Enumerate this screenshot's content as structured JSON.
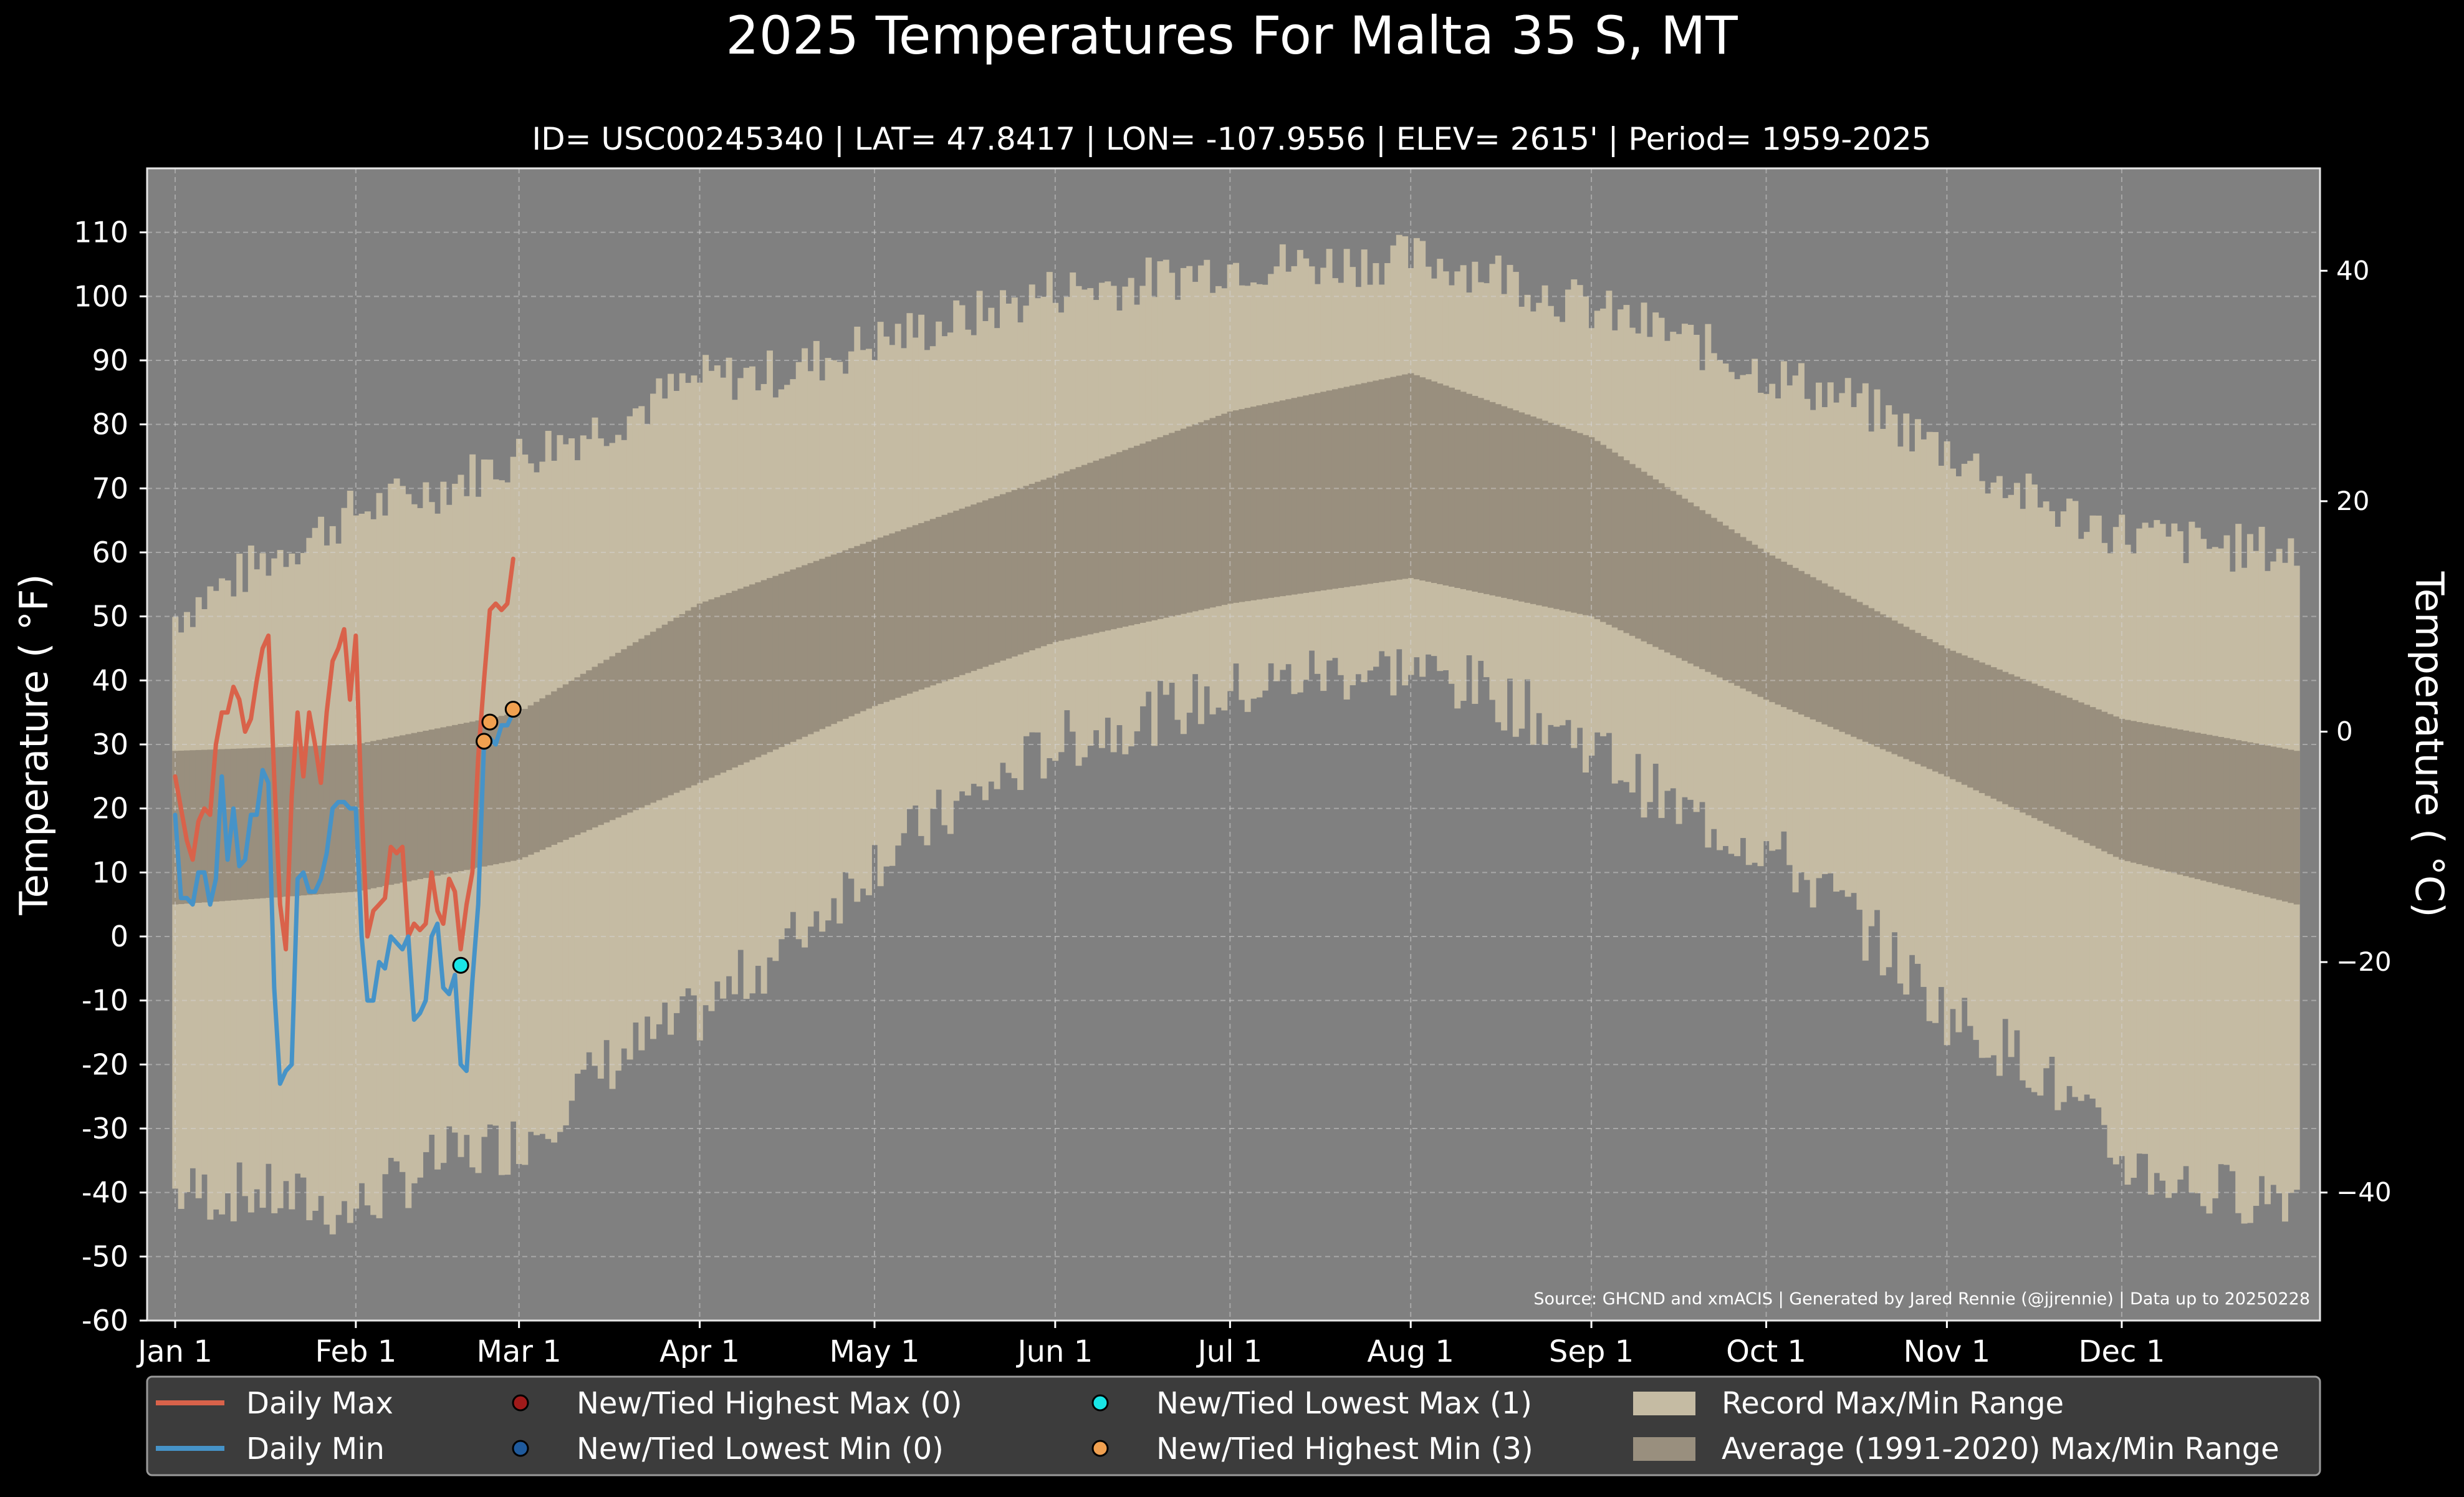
{
  "chart_data": {
    "type": "line",
    "title": "2025 Temperatures For Malta 35 S, MT",
    "subtitle": "ID= USC00245340 | LAT= 47.8417 | LON= -107.9556 | ELEV= 2615' | Period= 1959-2025",
    "ylabel_left": "Temperature ( °F)",
    "ylabel_right": "Temperature ( °C)",
    "source": "Source: GHCND and xmACIS | Generated by Jared Rennie (@jjrennie) | Data up to 20250228",
    "ylim": [
      -60,
      120
    ],
    "grid": true,
    "y_ticks": [
      -60,
      -50,
      -40,
      -30,
      -20,
      -10,
      0,
      10,
      20,
      30,
      40,
      50,
      60,
      70,
      80,
      90,
      100,
      110
    ],
    "y_ticks_c": [
      -40,
      -20,
      0,
      20,
      40
    ],
    "x_ticks": [
      {
        "label": "Jan 1",
        "day": 1
      },
      {
        "label": "Feb 1",
        "day": 32
      },
      {
        "label": "Mar 1",
        "day": 60
      },
      {
        "label": "Apr 1",
        "day": 91
      },
      {
        "label": "May 1",
        "day": 121
      },
      {
        "label": "Jun 1",
        "day": 152
      },
      {
        "label": "Jul 1",
        "day": 182
      },
      {
        "label": "Aug 1",
        "day": 213
      },
      {
        "label": "Sep 1",
        "day": 244
      },
      {
        "label": "Oct 1",
        "day": 274
      },
      {
        "label": "Nov 1",
        "day": 305
      },
      {
        "label": "Dec 1",
        "day": 335
      }
    ],
    "colors": {
      "background": "#808080",
      "record_range": "#c5bba3",
      "average_range": "#998f7e",
      "daily_max": "#d9624a",
      "daily_min": "#4693c8",
      "highest_max": "#a01a1a",
      "lowest_min": "#1f5a9c",
      "lowest_max": "#19e6e6",
      "highest_min": "#f0a050"
    },
    "record_max_anchors": [
      [
        1,
        50
      ],
      [
        15,
        58
      ],
      [
        31,
        66
      ],
      [
        46,
        70
      ],
      [
        60,
        75
      ],
      [
        75,
        80
      ],
      [
        91,
        87
      ],
      [
        105,
        88
      ],
      [
        121,
        93
      ],
      [
        135,
        96
      ],
      [
        152,
        101
      ],
      [
        166,
        102
      ],
      [
        182,
        105
      ],
      [
        196,
        105
      ],
      [
        213,
        106
      ],
      [
        227,
        104
      ],
      [
        244,
        98
      ],
      [
        258,
        94
      ],
      [
        274,
        88
      ],
      [
        288,
        84
      ],
      [
        305,
        76
      ],
      [
        320,
        68
      ],
      [
        335,
        63
      ],
      [
        350,
        61
      ],
      [
        365,
        60
      ]
    ],
    "record_min_anchors": [
      [
        1,
        -40
      ],
      [
        15,
        -40
      ],
      [
        31,
        -43
      ],
      [
        46,
        -35
      ],
      [
        60,
        -32
      ],
      [
        75,
        -20
      ],
      [
        91,
        -12
      ],
      [
        105,
        -2
      ],
      [
        121,
        12
      ],
      [
        135,
        20
      ],
      [
        152,
        30
      ],
      [
        166,
        34
      ],
      [
        182,
        38
      ],
      [
        196,
        41
      ],
      [
        213,
        42
      ],
      [
        227,
        38
      ],
      [
        244,
        30
      ],
      [
        258,
        20
      ],
      [
        274,
        14
      ],
      [
        288,
        4
      ],
      [
        305,
        -12
      ],
      [
        320,
        -20
      ],
      [
        335,
        -35
      ],
      [
        350,
        -40
      ],
      [
        365,
        -40
      ]
    ],
    "average_max_anchors": [
      [
        1,
        29
      ],
      [
        32,
        30
      ],
      [
        60,
        35
      ],
      [
        91,
        52
      ],
      [
        121,
        62
      ],
      [
        152,
        72
      ],
      [
        182,
        82
      ],
      [
        213,
        88
      ],
      [
        244,
        78
      ],
      [
        274,
        60
      ],
      [
        305,
        45
      ],
      [
        335,
        34
      ],
      [
        365,
        29
      ]
    ],
    "average_min_anchors": [
      [
        1,
        5
      ],
      [
        32,
        7
      ],
      [
        60,
        12
      ],
      [
        91,
        24
      ],
      [
        121,
        36
      ],
      [
        152,
        46
      ],
      [
        182,
        52
      ],
      [
        213,
        56
      ],
      [
        244,
        50
      ],
      [
        274,
        37
      ],
      [
        305,
        25
      ],
      [
        335,
        12
      ],
      [
        365,
        5
      ]
    ],
    "series": [
      {
        "name": "Daily Max",
        "values": [
          25,
          20,
          15,
          12,
          18,
          20,
          19,
          30,
          35,
          35,
          39,
          37,
          32,
          34,
          40,
          45,
          47,
          25,
          5,
          -2,
          22,
          35,
          25,
          35,
          30,
          24,
          35,
          43,
          45,
          48,
          37,
          47,
          20,
          0,
          4,
          5,
          6,
          14,
          13,
          14,
          0,
          2,
          1,
          2,
          10,
          4,
          2,
          9,
          7,
          -2,
          5,
          10,
          28,
          40,
          51,
          52,
          51,
          52,
          59
        ]
      },
      {
        "name": "Daily Min",
        "values": [
          19,
          6,
          6,
          5,
          10,
          10,
          5,
          9,
          25,
          12,
          20,
          11,
          12,
          19,
          19,
          26,
          24,
          -8,
          -23,
          -21,
          -20,
          9,
          10,
          7,
          7,
          9,
          13,
          20,
          21,
          21,
          20,
          20,
          0,
          -10,
          -10,
          -4,
          -5,
          0,
          -1,
          -2,
          0,
          -13,
          -12,
          -10,
          0,
          2,
          -8,
          -9,
          -6,
          -20,
          -21,
          -7,
          5,
          30,
          31,
          30,
          33,
          33,
          35
        ]
      }
    ],
    "record_points": [
      {
        "type": "lowest_max",
        "day": 50,
        "value": -4.5
      },
      {
        "type": "highest_min",
        "day": 54,
        "value": 30.5
      },
      {
        "type": "highest_min",
        "day": 55,
        "value": 33.5
      },
      {
        "type": "highest_min",
        "day": 59,
        "value": 35.5
      }
    ],
    "legend": {
      "placement": "bottom",
      "entries": [
        {
          "label": "Daily Max",
          "kind": "line",
          "color_key": "daily_max"
        },
        {
          "label": "Daily Min",
          "kind": "line",
          "color_key": "daily_min"
        },
        {
          "label": "New/Tied Highest Max (0)",
          "kind": "dot",
          "color_key": "highest_max"
        },
        {
          "label": "New/Tied Lowest Min (0)",
          "kind": "dot",
          "color_key": "lowest_min"
        },
        {
          "label": "New/Tied Lowest Max (1)",
          "kind": "dot",
          "color_key": "lowest_max"
        },
        {
          "label": "New/Tied Highest Min (3)",
          "kind": "dot",
          "color_key": "highest_min"
        },
        {
          "label": "Record Max/Min Range",
          "kind": "patch",
          "color_key": "record_range"
        },
        {
          "label": "Average (1991-2020) Max/Min Range",
          "kind": "patch",
          "color_key": "average_range"
        }
      ]
    }
  }
}
